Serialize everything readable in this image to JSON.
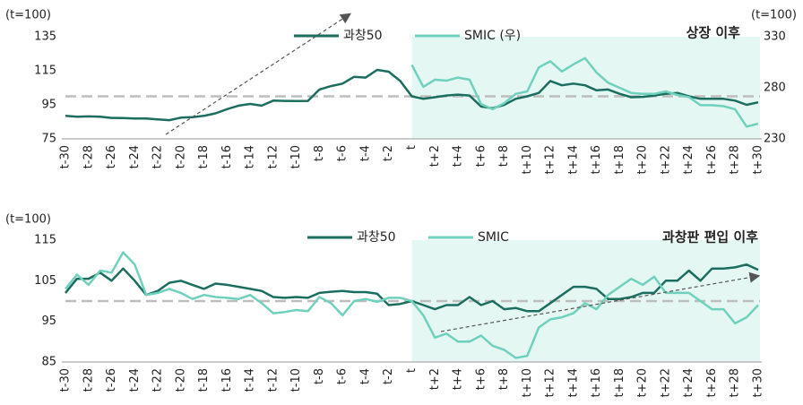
{
  "chart_data": [
    {
      "type": "line",
      "title": "상장 이후",
      "y_label": "(t=100)",
      "y2_label": "(t=100)",
      "categories": [
        "t-30",
        null,
        "t-28",
        null,
        "t-26",
        null,
        "t-24",
        null,
        "t-22",
        null,
        "t-20",
        null,
        "t-18",
        null,
        "t-16",
        null,
        "t-14",
        null,
        "t-12",
        null,
        "t-10",
        null,
        "t-8",
        null,
        "t-6",
        null,
        "t-4",
        null,
        "t-2",
        null,
        "t",
        null,
        "t+2",
        null,
        "t+4",
        null,
        "t+6",
        null,
        "t+8",
        null,
        "t+10",
        null,
        "t+12",
        null,
        "t+14",
        null,
        "t+16",
        null,
        "t+18",
        null,
        "t+20",
        null,
        "t+22",
        null,
        "t+24",
        null,
        "t+26",
        null,
        "t+28",
        null,
        "t+30"
      ],
      "series": [
        {
          "name": "과창50",
          "color": "#1b6e5f",
          "values": [
            88.5,
            88,
            88.2,
            88,
            87.3,
            87.2,
            87,
            87,
            86.5,
            86,
            87.5,
            87.8,
            88.5,
            90,
            92.5,
            94.5,
            95.5,
            94.5,
            97.5,
            97.3,
            97.2,
            97.3,
            104,
            106,
            107.5,
            111.5,
            111,
            115.5,
            114.5,
            109,
            100,
            98.5,
            99.5,
            100.5,
            101,
            100.5,
            94,
            93,
            95,
            98.5,
            100,
            102,
            109,
            106.5,
            107.5,
            106.5,
            103.5,
            104,
            101.5,
            99.5,
            99.7,
            100.5,
            101.5,
            102,
            100,
            98.5,
            98.5,
            98.5,
            97.5,
            95,
            96.5
          ]
        },
        {
          "name": "SMIC (우)",
          "color": "#6fd1bd",
          "axis": "y2",
          "values": [
            null,
            null,
            null,
            null,
            null,
            null,
            null,
            null,
            null,
            null,
            null,
            null,
            null,
            null,
            null,
            null,
            null,
            null,
            null,
            null,
            null,
            null,
            null,
            null,
            null,
            null,
            null,
            null,
            null,
            null,
            302.5,
            281,
            288,
            287,
            290,
            288,
            264,
            259,
            265,
            274,
            276.5,
            300,
            306,
            296,
            303,
            309,
            295,
            285,
            280,
            275,
            274,
            274,
            276.5,
            273,
            271,
            263,
            263,
            262,
            259,
            242,
            245
          ]
        }
      ],
      "ylim": [
        75,
        135
      ],
      "yticks": [
        75,
        95,
        115,
        135
      ],
      "y2lim": [
        230,
        330
      ],
      "y2ticks": [
        230,
        280,
        330
      ],
      "reference_line": 100,
      "highlight": [
        "t",
        "t+30"
      ],
      "grid": false
    },
    {
      "type": "line",
      "title": "과창판 편입 이후",
      "y_label": "(t=100)",
      "categories": [
        "t-30",
        null,
        "t-28",
        null,
        "t-26",
        null,
        "t-24",
        null,
        "t-22",
        null,
        "t-20",
        null,
        "t-18",
        null,
        "t-16",
        null,
        "t-14",
        null,
        "t-12",
        null,
        "t-10",
        null,
        "t-8",
        null,
        "t-6",
        null,
        "t-4",
        null,
        "t-2",
        null,
        "t",
        null,
        "t+2",
        null,
        "t+4",
        null,
        "t+6",
        null,
        "t+8",
        null,
        "t+10",
        null,
        "t+12",
        null,
        "t+14",
        null,
        "t+16",
        null,
        "t+18",
        null,
        "t+20",
        null,
        "t+22",
        null,
        "t+24",
        null,
        "t+26",
        null,
        "t+28",
        null,
        "t+30"
      ],
      "series": [
        {
          "name": "과창50",
          "color": "#1b6e5f",
          "values": [
            102,
            105.5,
            105.5,
            107,
            105,
            108,
            105,
            101.5,
            102.5,
            104.5,
            105,
            104,
            103,
            104.3,
            104,
            103.5,
            103,
            102.5,
            101,
            100.8,
            101,
            100.8,
            102,
            102.3,
            102.5,
            102.2,
            102.2,
            101.8,
            99,
            99.3,
            100,
            99,
            98,
            99,
            99,
            101,
            99,
            100,
            98,
            98.3,
            97.5,
            97.5,
            99.5,
            101.5,
            103.5,
            103.5,
            103,
            100.5,
            100.5,
            101,
            102,
            102,
            105,
            105,
            107.5,
            105,
            108,
            108,
            108.3,
            109,
            107.7
          ]
        },
        {
          "name": "SMIC",
          "color": "#6fd1bd",
          "values": [
            103,
            106.5,
            104,
            107.5,
            107,
            112,
            109,
            101.5,
            102,
            103,
            102,
            100.5,
            101.5,
            101,
            100.8,
            100.5,
            101.5,
            99.5,
            97,
            97.3,
            97.8,
            97.5,
            101,
            99.5,
            96.5,
            100,
            100.5,
            99.8,
            100.8,
            100.8,
            100,
            96.5,
            91,
            92,
            90,
            90,
            91.5,
            89,
            88,
            86,
            86.5,
            93.5,
            95.5,
            96,
            97,
            99.5,
            98,
            101.5,
            103.5,
            105.5,
            104,
            106,
            102,
            102,
            102,
            100,
            98,
            98,
            94.5,
            96,
            99
          ]
        }
      ],
      "ylim": [
        85,
        115
      ],
      "yticks": [
        85,
        95,
        105,
        115
      ],
      "reference_line": 100,
      "highlight": [
        "t",
        "t+30"
      ],
      "grid": false
    }
  ]
}
